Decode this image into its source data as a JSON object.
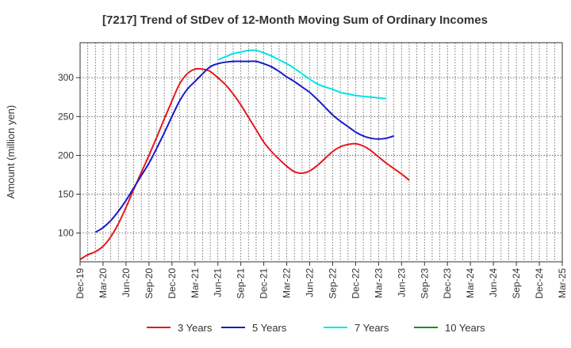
{
  "chart_data": {
    "type": "line",
    "title": "[7217]  Trend of StDev of 12-Month Moving Sum of Ordinary Incomes",
    "xlabel": "",
    "ylabel": "Amount (million yen)",
    "ylim": [
      63,
      345
    ],
    "yticks": [
      100,
      150,
      200,
      250,
      300
    ],
    "x_ticks": [
      "Dec-19",
      "Mar-20",
      "Jun-20",
      "Sep-20",
      "Dec-20",
      "Mar-21",
      "Jun-21",
      "Sep-21",
      "Dec-21",
      "Mar-22",
      "Jun-22",
      "Sep-22",
      "Dec-22",
      "Mar-23",
      "Jun-23",
      "Sep-23",
      "Dec-23",
      "Mar-24",
      "Jun-24",
      "Sep-24",
      "Dec-24",
      "Mar-25"
    ],
    "grid": true,
    "legend_position": "bottom",
    "series": [
      {
        "name": "3 Years",
        "color": "#e31a1c",
        "values": [
          66,
          72,
          76,
          83,
          95,
          112,
          133,
          156,
          178,
          200,
          223,
          247,
          270,
          292,
          305,
          311,
          311,
          308,
          300,
          291,
          279,
          265,
          249,
          233,
          217,
          205,
          195,
          186,
          179,
          177,
          180,
          187,
          196,
          205,
          211,
          214,
          215,
          212,
          206,
          198,
          190,
          183,
          176,
          168
        ]
      },
      {
        "name": "5 Years",
        "color": "#1a1acc",
        "values": [
          null,
          null,
          101,
          107,
          116,
          128,
          142,
          158,
          174,
          190,
          209,
          229,
          250,
          270,
          285,
          295,
          305,
          314,
          318,
          320,
          321,
          321,
          321,
          321,
          318,
          314,
          308,
          301,
          295,
          288,
          281,
          272,
          262,
          252,
          244,
          237,
          230,
          225,
          222,
          221,
          222,
          225
        ]
      },
      {
        "name": "7 Years",
        "color": "#00e5e5",
        "values": [
          null,
          null,
          null,
          null,
          null,
          null,
          null,
          null,
          null,
          null,
          null,
          null,
          null,
          null,
          null,
          null,
          null,
          null,
          323,
          327,
          331,
          333,
          335,
          335,
          332,
          328,
          323,
          318,
          312,
          305,
          298,
          292,
          288,
          285,
          281,
          279,
          277,
          276,
          275,
          274,
          273
        ]
      },
      {
        "name": "10 Years",
        "color": "#228b22",
        "values": []
      }
    ]
  }
}
